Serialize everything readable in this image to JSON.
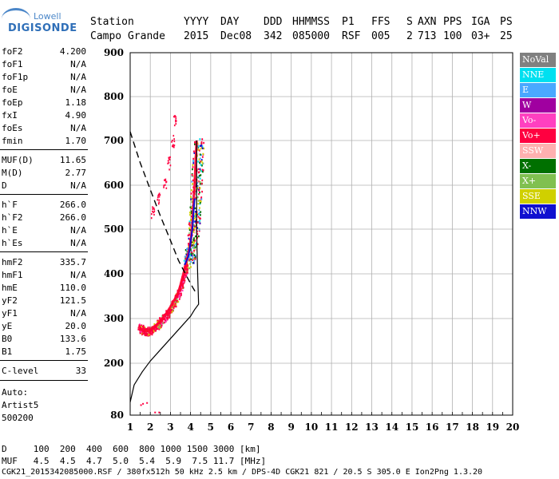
{
  "logo": {
    "top": "Lowell",
    "main": "DIGISONDE"
  },
  "header": {
    "row1": [
      "Station",
      "YYYY",
      "DAY",
      "DDD",
      "HHMMSS",
      "P1",
      "FFS",
      "S",
      "AXN",
      "PPS",
      "IGA",
      "PS"
    ],
    "row2": [
      "Campo Grande",
      "2015",
      "Dec08",
      "342",
      "085000",
      "RSF",
      "005",
      "2",
      "713",
      "100",
      "03+",
      "25"
    ]
  },
  "params": [
    {
      "name": "foF2",
      "value": "4.200"
    },
    {
      "name": "foF1",
      "value": "N/A"
    },
    {
      "name": "foF1p",
      "value": "N/A"
    },
    {
      "name": "foE",
      "value": "N/A"
    },
    {
      "name": "foEp",
      "value": "1.18"
    },
    {
      "name": "fxI",
      "value": "4.90"
    },
    {
      "name": "foEs",
      "value": "N/A"
    },
    {
      "name": "fmin",
      "value": "1.70"
    },
    {
      "name": "MUF(D)",
      "value": "11.65"
    },
    {
      "name": "M(D)",
      "value": "2.77"
    },
    {
      "name": "D",
      "value": "N/A"
    },
    {
      "name": "h`F",
      "value": "266.0"
    },
    {
      "name": "h`F2",
      "value": "266.0"
    },
    {
      "name": "h`E",
      "value": "N/A"
    },
    {
      "name": "h`Es",
      "value": "N/A"
    },
    {
      "name": "hmF2",
      "value": "335.7"
    },
    {
      "name": "hmF1",
      "value": "N/A"
    },
    {
      "name": "hmE",
      "value": "110.0"
    },
    {
      "name": "yF2",
      "value": "121.5"
    },
    {
      "name": "yF1",
      "value": "N/A"
    },
    {
      "name": "yE",
      "value": "20.0"
    },
    {
      "name": "B0",
      "value": "133.6"
    },
    {
      "name": "B1",
      "value": "1.75"
    },
    {
      "name": "C-level",
      "value": "33"
    }
  ],
  "auto": [
    "Auto:",
    "Artist5",
    "500200"
  ],
  "legend": [
    {
      "label": "NoVal",
      "color": "#808080"
    },
    {
      "label": "NNE",
      "color": "#00e0f0"
    },
    {
      "label": "E",
      "color": "#4aa8ff"
    },
    {
      "label": "W",
      "color": "#a000a0"
    },
    {
      "label": "Vo-",
      "color": "#ff40c0"
    },
    {
      "label": "Vo+",
      "color": "#ff0040"
    },
    {
      "label": "SSW",
      "color": "#ffb0b0"
    },
    {
      "label": "X-",
      "color": "#007000"
    },
    {
      "label": "X+",
      "color": "#80c050"
    },
    {
      "label": "SSE",
      "color": "#d0d000"
    },
    {
      "label": "NNW",
      "color": "#1010d0"
    }
  ],
  "footer": {
    "d_row": "D     100  200  400  600  800 1000 1500 3000 [km]",
    "muf_row": "MUF   4.5  4.5  4.7  5.0  5.4  5.9  7.5 11.7 [MHz]",
    "info": "CGK21_2015342085000.RSF / 380fx512h 50 kHz 2.5 km / DPS-4D CGK21 821 / 20.5 S 305.0 E Ion2Png 1.3.20"
  },
  "chart_data": {
    "type": "scatter",
    "xlim": [
      1,
      20
    ],
    "ylim": [
      80,
      900
    ],
    "x_ticks": [
      "1",
      "2",
      "3",
      "4",
      "5",
      "6",
      "7",
      "8",
      "9",
      "10",
      "11",
      "12",
      "13",
      "14",
      "15",
      "16",
      "17",
      "18",
      "19",
      "20"
    ],
    "y_ticks": [
      "80",
      "200",
      "300",
      "400",
      "500",
      "600",
      "700",
      "800",
      "900"
    ],
    "y_tick_values": [
      80,
      200,
      300,
      400,
      500,
      600,
      700,
      800,
      900
    ],
    "grid": true,
    "trace": {
      "name": "Vo+",
      "points": [
        [
          1.4,
          282
        ],
        [
          1.6,
          275
        ],
        [
          1.8,
          272
        ],
        [
          2.0,
          275
        ],
        [
          2.2,
          282
        ],
        [
          2.4,
          290
        ],
        [
          2.6,
          300
        ],
        [
          2.8,
          312
        ],
        [
          3.0,
          326
        ],
        [
          3.2,
          342
        ],
        [
          3.4,
          360
        ],
        [
          3.5,
          375
        ],
        [
          3.6,
          392
        ],
        [
          3.7,
          410
        ],
        [
          3.8,
          428
        ],
        [
          3.9,
          448
        ],
        [
          4.0,
          468
        ],
        [
          4.05,
          492
        ],
        [
          4.1,
          520
        ],
        [
          4.15,
          560
        ],
        [
          4.2,
          600
        ],
        [
          4.25,
          650
        ],
        [
          4.3,
          700
        ]
      ]
    },
    "trace_nnw": {
      "name": "NNW",
      "points": [
        [
          3.7,
          420
        ],
        [
          3.9,
          440
        ],
        [
          4.0,
          470
        ],
        [
          4.1,
          505
        ],
        [
          4.15,
          540
        ],
        [
          4.2,
          570
        ]
      ]
    },
    "profile_solid": [
      [
        1.0,
        110
      ],
      [
        1.2,
        150
      ],
      [
        1.6,
        180
      ],
      [
        2.0,
        205
      ],
      [
        2.5,
        230
      ],
      [
        3.0,
        255
      ],
      [
        3.5,
        280
      ],
      [
        4.0,
        305
      ],
      [
        4.2,
        320
      ],
      [
        4.4,
        332
      ],
      [
        4.35,
        400
      ],
      [
        4.3,
        500
      ],
      [
        4.3,
        600
      ],
      [
        4.3,
        700
      ]
    ],
    "profile_dashed": [
      [
        1.0,
        720
      ],
      [
        1.5,
        650
      ],
      [
        2.0,
        590
      ],
      [
        2.5,
        530
      ],
      [
        3.0,
        475
      ],
      [
        3.4,
        430
      ],
      [
        3.8,
        395
      ],
      [
        4.1,
        370
      ],
      [
        4.3,
        355
      ]
    ],
    "spur": [
      [
        2.1,
        540
      ],
      [
        2.4,
        570
      ],
      [
        2.7,
        610
      ],
      [
        2.9,
        650
      ],
      [
        3.1,
        700
      ],
      [
        3.2,
        750
      ]
    ]
  }
}
